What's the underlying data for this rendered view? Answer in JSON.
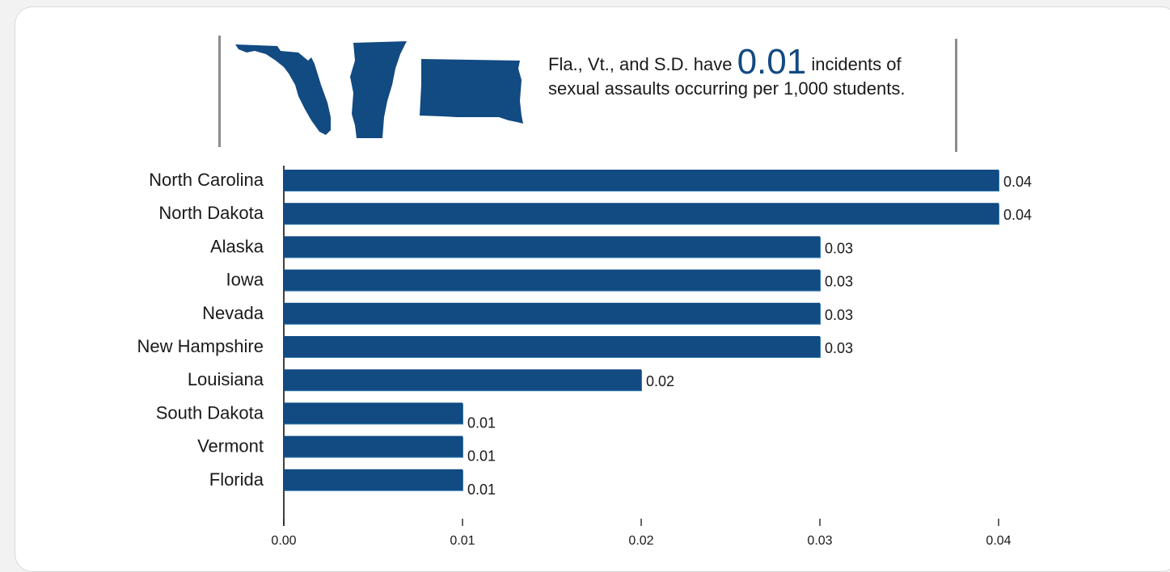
{
  "colors": {
    "bar": "#124a82",
    "bar_edge": "#2f7db2",
    "text": "#1a1a1a",
    "accent": "#124a82"
  },
  "callout": {
    "prefix": "Fla., Vt., and S.D. have",
    "value": "0.01",
    "suffix_line1": "incidents of",
    "line2": "sexual assaults occurring per 1,000 students."
  },
  "map_icons": [
    "florida-map-icon",
    "vermont-map-icon",
    "south-dakota-map-icon"
  ],
  "chart_data": {
    "type": "bar",
    "orientation": "horizontal",
    "categories": [
      "North Carolina",
      "North Dakota",
      "Alaska",
      "Iowa",
      "Nevada",
      "New Hampshire",
      "Louisiana",
      "South Dakota",
      "Vermont",
      "Florida"
    ],
    "values": [
      0.04,
      0.04,
      0.03,
      0.03,
      0.03,
      0.03,
      0.02,
      0.01,
      0.01,
      0.01
    ],
    "value_labels": [
      "0.04",
      "0.04",
      "0.03",
      "0.03",
      "0.03",
      "0.03",
      "0.02",
      "0.01",
      "0.01",
      "0.01"
    ],
    "xticks": [
      "0.00",
      "0.01",
      "0.02",
      "0.03",
      "0.04"
    ],
    "xlim": [
      0,
      0.04
    ],
    "title": "",
    "xlabel": "",
    "ylabel": "",
    "grid": false,
    "legend": "none"
  }
}
